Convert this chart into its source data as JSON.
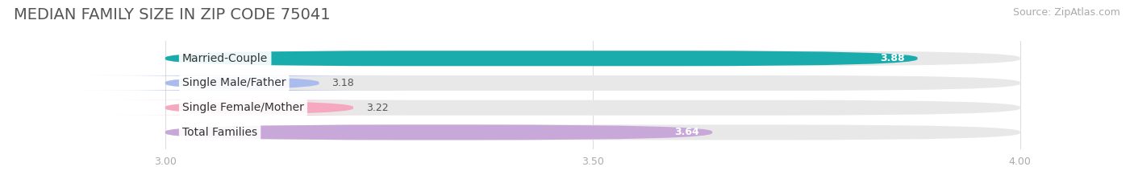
{
  "title": "MEDIAN FAMILY SIZE IN ZIP CODE 75041",
  "source": "Source: ZipAtlas.com",
  "categories": [
    "Married-Couple",
    "Single Male/Father",
    "Single Female/Mother",
    "Total Families"
  ],
  "values": [
    3.88,
    3.18,
    3.22,
    3.64
  ],
  "bar_colors": [
    "#1aacac",
    "#aabbee",
    "#f5a8c0",
    "#c8a8d8"
  ],
  "label_colors": [
    "#ffffff",
    "#555555",
    "#555555",
    "#ffffff"
  ],
  "xmin": 3.0,
  "xmax": 4.0,
  "xlim_left": 2.82,
  "xlim_right": 4.12,
  "xticks": [
    3.0,
    3.5,
    4.0
  ],
  "xtick_labels": [
    "3.00",
    "3.50",
    "4.00"
  ],
  "bar_height": 0.62,
  "bg_color": "#ffffff",
  "bar_bg_color": "#e8e8e8",
  "title_fontsize": 14,
  "source_fontsize": 9,
  "label_fontsize": 10,
  "tick_fontsize": 9,
  "value_fontsize": 9
}
